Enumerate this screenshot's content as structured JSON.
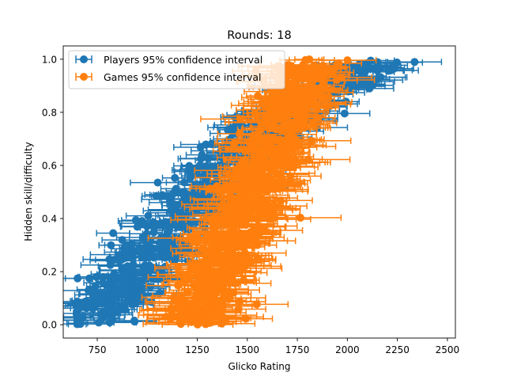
{
  "chart_data": {
    "type": "scatter",
    "title": "Rounds: 18",
    "xlabel": "Glicko Rating",
    "ylabel": "Hidden skill/difficulty",
    "xlim": [
      580,
      2540
    ],
    "ylim": [
      -0.05,
      1.05
    ],
    "xticks": [
      750,
      1000,
      1250,
      1500,
      1750,
      2000,
      2250,
      2500
    ],
    "xtick_labels": [
      "750",
      "1000",
      "1250",
      "1500",
      "1750",
      "2000",
      "2250",
      "2500"
    ],
    "yticks": [
      0.0,
      0.2,
      0.4,
      0.6,
      0.8,
      1.0
    ],
    "ytick_labels": [
      "0.0",
      "0.2",
      "0.4",
      "0.6",
      "0.8",
      "1.0"
    ],
    "legend_position": "top-left",
    "grid": false,
    "series": [
      {
        "name": "Players 95% confidence interval",
        "color": "#1f77b4",
        "style": "errorbar-x",
        "x_range": [
          650,
          2440
        ],
        "trend_points": [
          {
            "x": 700,
            "y": 0.0
          },
          {
            "x": 950,
            "y": 0.2
          },
          {
            "x": 1150,
            "y": 0.4
          },
          {
            "x": 1400,
            "y": 0.6
          },
          {
            "x": 1700,
            "y": 0.8
          },
          {
            "x": 2150,
            "y": 1.0
          }
        ]
      },
      {
        "name": "Games 95% confidence interval",
        "color": "#ff7f0e",
        "style": "errorbar-x",
        "x_range": [
          1120,
          2080
        ],
        "trend_points": [
          {
            "x": 1200,
            "y": 0.0
          },
          {
            "x": 1350,
            "y": 0.2
          },
          {
            "x": 1480,
            "y": 0.4
          },
          {
            "x": 1600,
            "y": 0.6
          },
          {
            "x": 1700,
            "y": 0.8
          },
          {
            "x": 1800,
            "y": 1.0
          }
        ]
      }
    ]
  }
}
